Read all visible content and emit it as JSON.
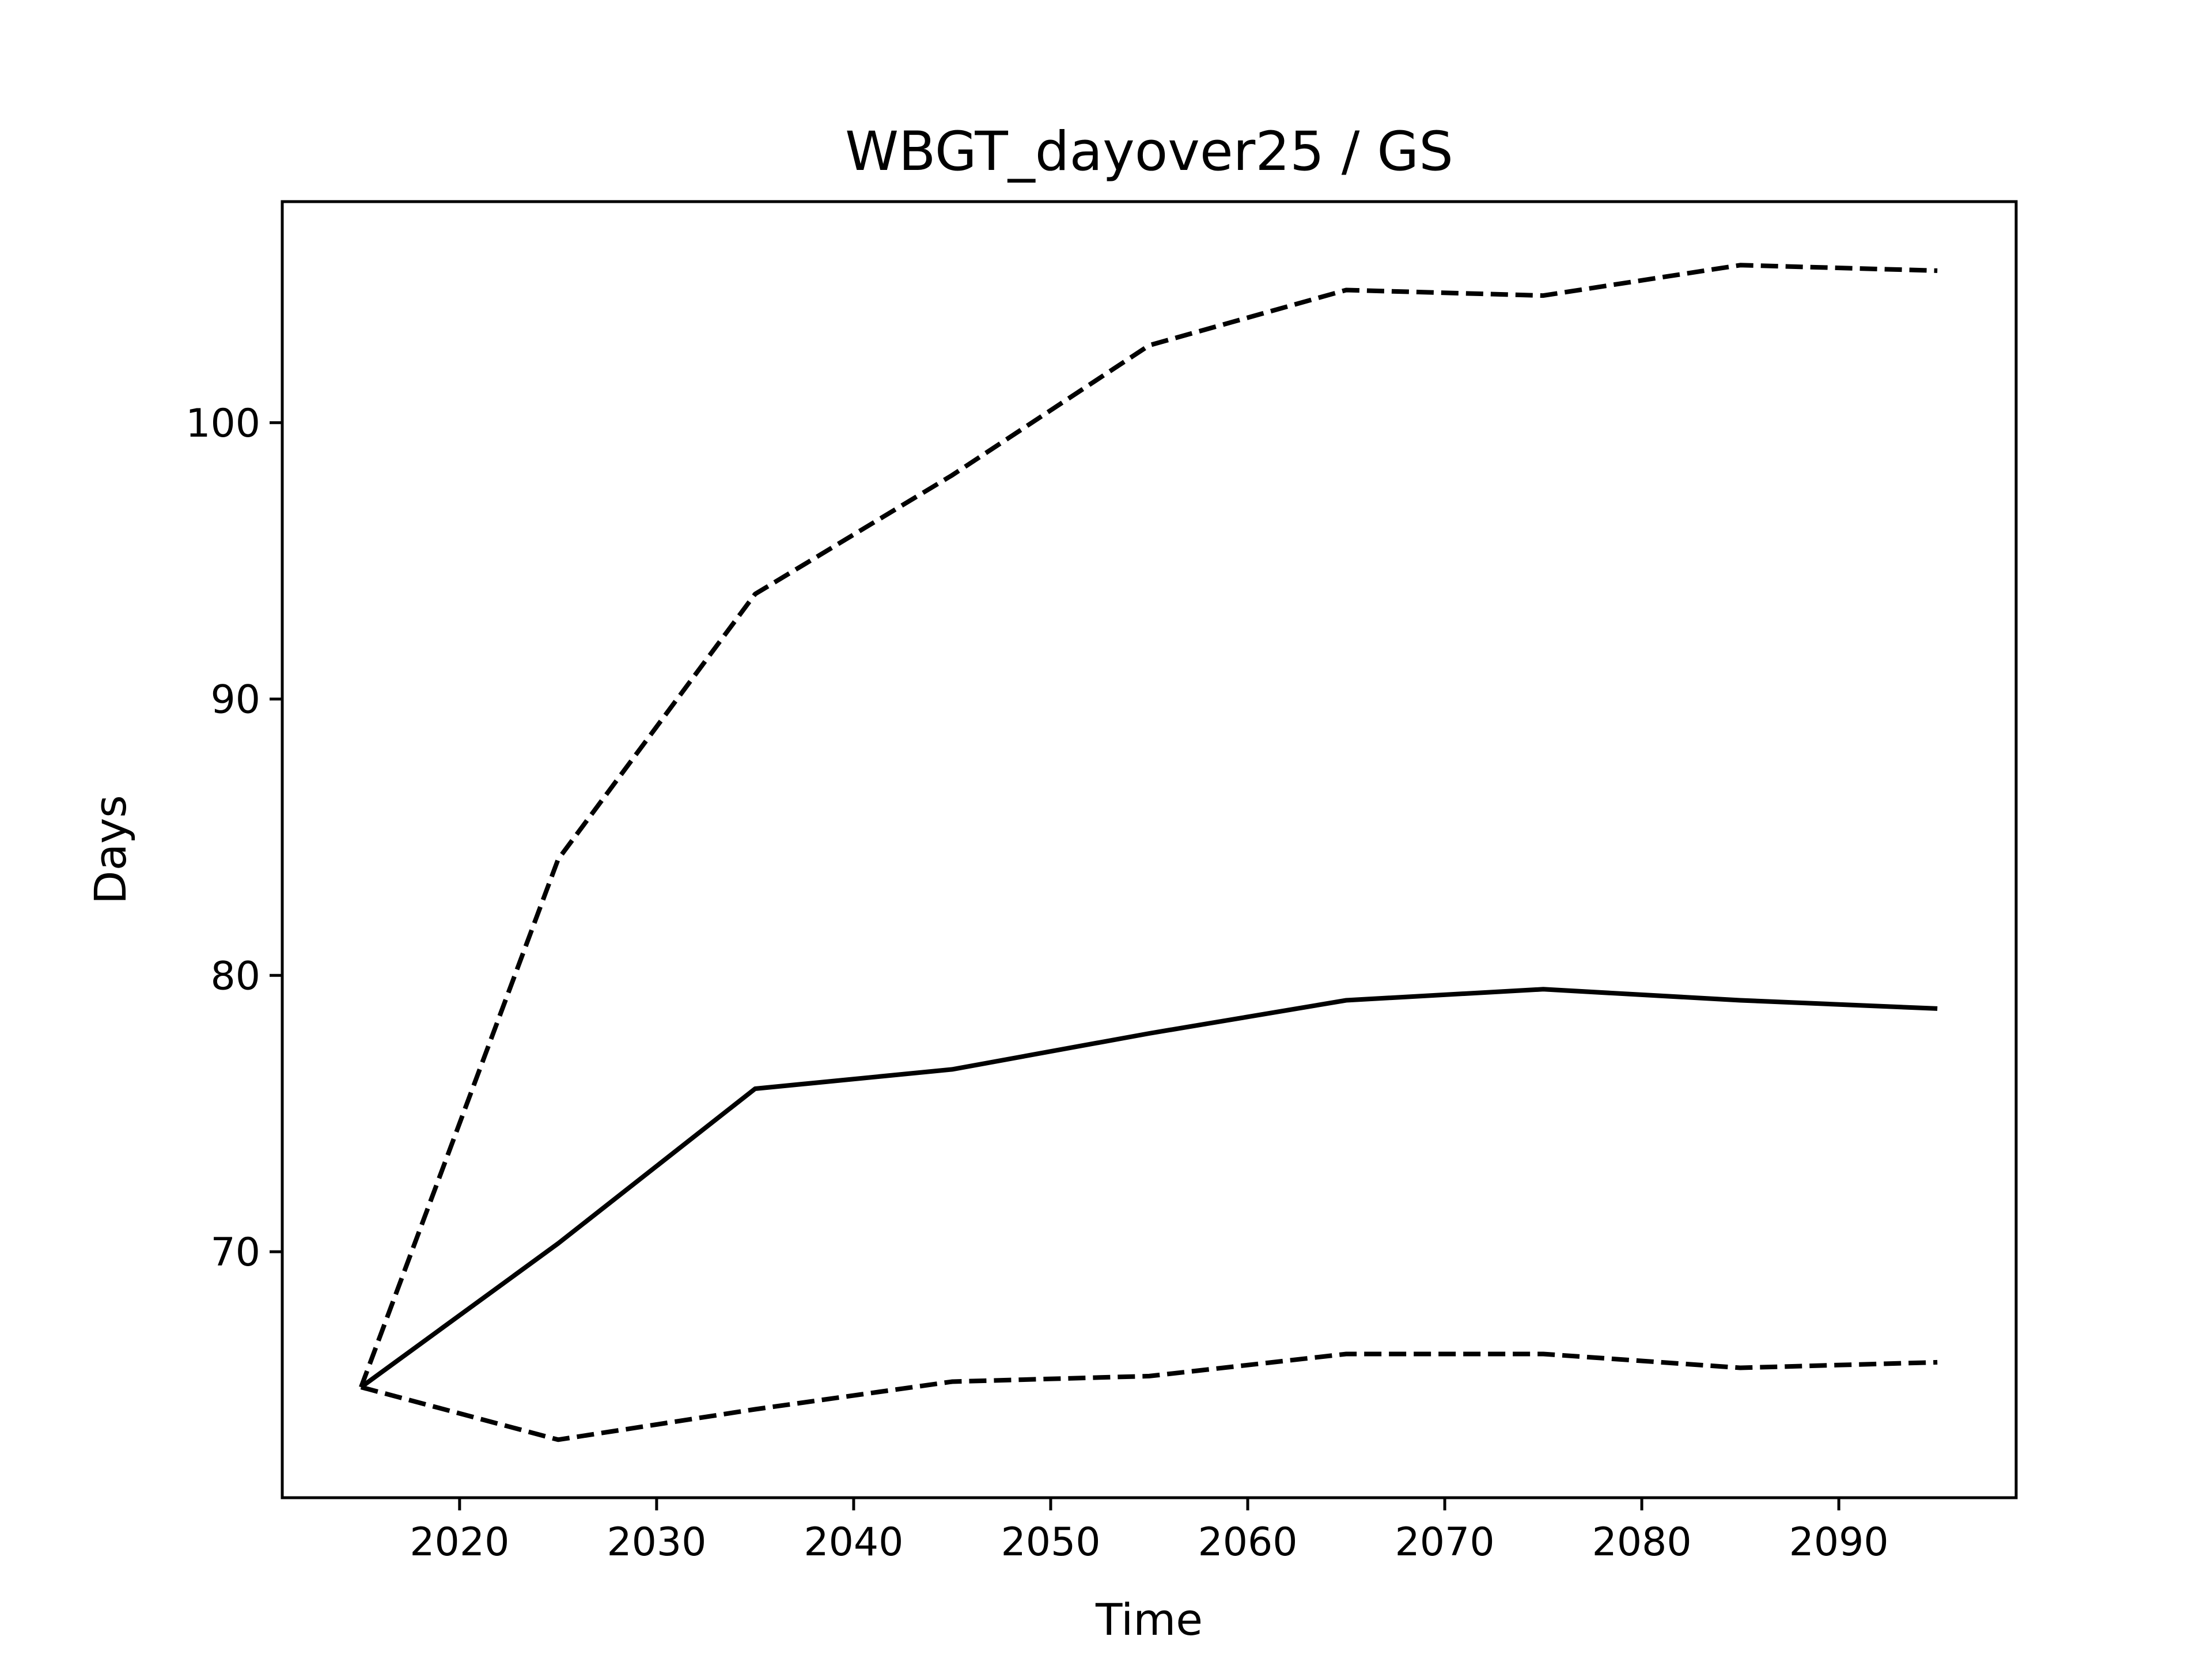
{
  "chart_data": {
    "type": "line",
    "title": "WBGT_dayover25 / GS",
    "xlabel": "Time",
    "ylabel": "Days",
    "xlim": [
      2011,
      2099
    ],
    "ylim": [
      61.1,
      108.0
    ],
    "xticks": [
      2020,
      2030,
      2040,
      2050,
      2060,
      2070,
      2080,
      2090
    ],
    "yticks": [
      70,
      80,
      90,
      100
    ],
    "grid": false,
    "x": [
      2015,
      2025,
      2035,
      2045,
      2055,
      2065,
      2075,
      2085,
      2095
    ],
    "series": [
      {
        "style": "solid",
        "color": "#000000",
        "values": [
          65.1,
          70.3,
          75.9,
          76.6,
          77.9,
          79.1,
          79.5,
          79.1,
          78.8
        ]
      },
      {
        "style": "dashed",
        "color": "#000000",
        "values": [
          65.1,
          84.2,
          93.8,
          98.1,
          102.8,
          104.8,
          104.6,
          105.7,
          105.5
        ]
      },
      {
        "style": "dashed",
        "color": "#000000",
        "values": [
          65.1,
          63.2,
          64.3,
          65.3,
          65.5,
          66.3,
          66.3,
          65.8,
          66.0
        ]
      }
    ]
  }
}
